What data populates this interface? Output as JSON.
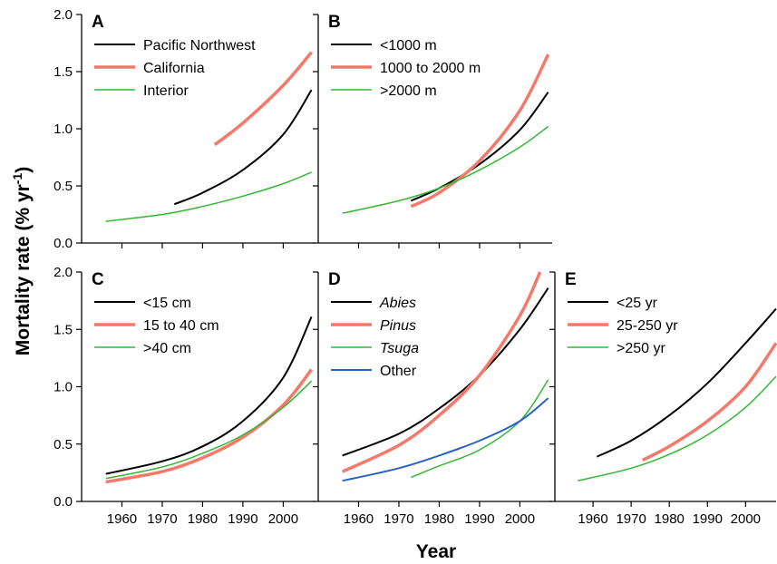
{
  "chart_data": [
    {
      "type": "line",
      "panel": "A",
      "xlim": [
        1950,
        2008
      ],
      "ylim": [
        0,
        2.0
      ],
      "xticks": [
        1960,
        1970,
        1980,
        1990,
        2000
      ],
      "yticks": [
        "0.0",
        "0.5",
        "1.0",
        "1.5",
        "2.0"
      ],
      "show_x_ticklabels": false,
      "show_y_ticklabels": true,
      "legend": "top-left",
      "series": [
        {
          "name": "Pacific Northwest",
          "color": "#000000",
          "width": 2,
          "x": [
            1973,
            1980,
            1990,
            2000,
            2007
          ],
          "y": [
            0.34,
            0.44,
            0.64,
            0.95,
            1.34
          ]
        },
        {
          "name": "California",
          "color": "#f4796b",
          "width": 3.5,
          "x": [
            1983,
            1990,
            2000,
            2007
          ],
          "y": [
            0.86,
            1.05,
            1.38,
            1.67
          ]
        },
        {
          "name": "Interior",
          "color": "#33b833",
          "width": 1.5,
          "x": [
            1956,
            1970,
            1980,
            1990,
            2000,
            2007
          ],
          "y": [
            0.19,
            0.25,
            0.32,
            0.41,
            0.52,
            0.62
          ]
        }
      ]
    },
    {
      "type": "line",
      "panel": "B",
      "xlim": [
        1950,
        2008
      ],
      "ylim": [
        0,
        2.0
      ],
      "xticks": [
        1960,
        1970,
        1980,
        1990,
        2000
      ],
      "yticks": [
        "0.0",
        "0.5",
        "1.0",
        "1.5",
        "2.0"
      ],
      "show_x_ticklabels": false,
      "show_y_ticklabels": false,
      "legend": "top-left",
      "series": [
        {
          "name": "<1000 m",
          "color": "#000000",
          "width": 2,
          "x": [
            1973,
            1980,
            1990,
            2000,
            2007
          ],
          "y": [
            0.37,
            0.48,
            0.69,
            0.99,
            1.32
          ]
        },
        {
          "name": "1000 to 2000 m",
          "color": "#f4796b",
          "width": 3.5,
          "x": [
            1973,
            1980,
            1990,
            2000,
            2007
          ],
          "y": [
            0.32,
            0.44,
            0.72,
            1.16,
            1.65
          ]
        },
        {
          "name": ">2000 m",
          "color": "#33b833",
          "width": 1.5,
          "x": [
            1956,
            1970,
            1980,
            1990,
            2000,
            2007
          ],
          "y": [
            0.26,
            0.37,
            0.48,
            0.64,
            0.84,
            1.02
          ]
        }
      ]
    },
    {
      "type": "line",
      "panel": "C",
      "xlim": [
        1950,
        2008
      ],
      "ylim": [
        0,
        2.0
      ],
      "xticks": [
        1960,
        1970,
        1980,
        1990,
        2000
      ],
      "yticks": [
        "0.0",
        "0.5",
        "1.0",
        "1.5",
        "2.0"
      ],
      "show_x_ticklabels": true,
      "show_y_ticklabels": true,
      "legend": "top-left",
      "series": [
        {
          "name": "<15 cm",
          "color": "#000000",
          "width": 2,
          "x": [
            1956,
            1970,
            1980,
            1990,
            2000,
            2007
          ],
          "y": [
            0.24,
            0.35,
            0.48,
            0.7,
            1.08,
            1.61
          ]
        },
        {
          "name": "15 to 40 cm",
          "color": "#f4796b",
          "width": 3.5,
          "x": [
            1956,
            1970,
            1980,
            1990,
            2000,
            2007
          ],
          "y": [
            0.17,
            0.26,
            0.38,
            0.56,
            0.84,
            1.15
          ]
        },
        {
          "name": ">40 cm",
          "color": "#33b833",
          "width": 1.5,
          "x": [
            1956,
            1970,
            1980,
            1990,
            2000,
            2007
          ],
          "y": [
            0.2,
            0.3,
            0.42,
            0.58,
            0.82,
            1.05
          ]
        }
      ]
    },
    {
      "type": "line",
      "panel": "D",
      "xlim": [
        1950,
        2008
      ],
      "ylim": [
        0,
        2.0
      ],
      "xticks": [
        1960,
        1970,
        1980,
        1990,
        2000
      ],
      "yticks": [
        "0.0",
        "0.5",
        "1.0",
        "1.5",
        "2.0"
      ],
      "show_x_ticklabels": true,
      "show_y_ticklabels": false,
      "legend": "top-left",
      "series": [
        {
          "name": "Abies",
          "italic": true,
          "color": "#000000",
          "width": 2,
          "x": [
            1956,
            1970,
            1980,
            1990,
            2000,
            2007
          ],
          "y": [
            0.4,
            0.59,
            0.81,
            1.1,
            1.5,
            1.86
          ]
        },
        {
          "name": "Pinus",
          "italic": true,
          "color": "#f4796b",
          "width": 3.5,
          "x": [
            1956,
            1970,
            1980,
            1990,
            2000,
            2005
          ],
          "y": [
            0.26,
            0.49,
            0.75,
            1.1,
            1.62,
            2.0
          ]
        },
        {
          "name": "Tsuga",
          "italic": true,
          "color": "#33b833",
          "width": 1.5,
          "x": [
            1973,
            1980,
            1990,
            2000,
            2007
          ],
          "y": [
            0.21,
            0.31,
            0.45,
            0.7,
            1.06
          ]
        },
        {
          "name": "Other",
          "italic": false,
          "color": "#2a62c8",
          "width": 2,
          "x": [
            1956,
            1970,
            1980,
            1990,
            2000,
            2007
          ],
          "y": [
            0.18,
            0.29,
            0.4,
            0.53,
            0.7,
            0.9
          ]
        }
      ]
    },
    {
      "type": "line",
      "panel": "E",
      "xlim": [
        1950,
        2008
      ],
      "ylim": [
        0,
        2.0
      ],
      "xticks": [
        1960,
        1970,
        1980,
        1990,
        2000
      ],
      "yticks": [
        "0.0",
        "0.5",
        "1.0",
        "1.5",
        "2.0"
      ],
      "show_x_ticklabels": true,
      "show_y_ticklabels": false,
      "legend": "top-left",
      "series": [
        {
          "name": "<25 yr",
          "color": "#000000",
          "width": 2,
          "x": [
            1961,
            1970,
            1980,
            1990,
            2000,
            2008
          ],
          "y": [
            0.39,
            0.53,
            0.75,
            1.03,
            1.38,
            1.68
          ]
        },
        {
          "name": "25-250 yr",
          "color": "#f4796b",
          "width": 3.5,
          "x": [
            1973,
            1980,
            1990,
            2000,
            2008
          ],
          "y": [
            0.36,
            0.48,
            0.7,
            1.0,
            1.38
          ]
        },
        {
          "name": ">250 yr",
          "color": "#33b833",
          "width": 1.5,
          "x": [
            1956,
            1970,
            1980,
            1990,
            2000,
            2008
          ],
          "y": [
            0.18,
            0.29,
            0.41,
            0.58,
            0.82,
            1.09
          ]
        }
      ]
    }
  ],
  "y_axis_title": "Mortality rate (% yr",
  "y_axis_title_sup": "-1",
  "y_axis_title_end": ")",
  "x_axis_title": "Year"
}
